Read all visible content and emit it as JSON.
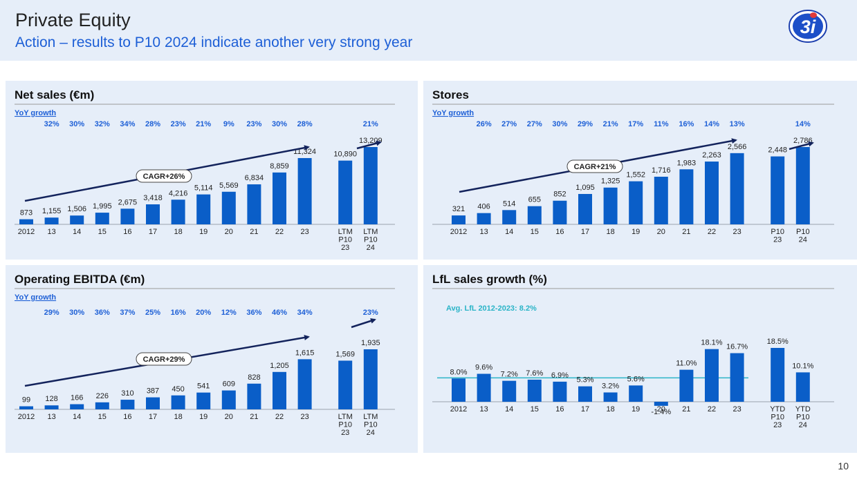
{
  "header": {
    "title": "Private Equity",
    "subtitle": "Action – results to P10 2024 indicate another very strong year"
  },
  "page_number": "10",
  "logo": {
    "icon": "3i-logo-icon",
    "text": "3i"
  },
  "colors": {
    "bar": "#0a5ec8",
    "growth": "#1d5fd6",
    "arrow": "#13235c",
    "avg_line": "#2ab4c7",
    "panel_bg": "#e6eef9"
  },
  "chart_data": [
    {
      "id": "net-sales",
      "type": "bar",
      "title": "Net sales (€m)",
      "growth_label": "YoY growth",
      "categories": [
        "2012",
        "13",
        "14",
        "15",
        "16",
        "17",
        "18",
        "19",
        "20",
        "21",
        "22",
        "23",
        "LTM P10 23",
        "LTM P10 24"
      ],
      "values": [
        873,
        1155,
        1506,
        1995,
        2675,
        3418,
        4216,
        5114,
        5569,
        6834,
        8859,
        11324,
        10890,
        13209
      ],
      "value_labels": [
        "873",
        "1,155",
        "1,506",
        "1,995",
        "2,675",
        "3,418",
        "4,216",
        "5,114",
        "5,569",
        "6,834",
        "8,859",
        "11,324",
        "10,890",
        "13,209"
      ],
      "growth": [
        "",
        "32%",
        "30%",
        "32%",
        "34%",
        "28%",
        "23%",
        "21%",
        "9%",
        "23%",
        "30%",
        "28%",
        "",
        "21%"
      ],
      "cagr_label": "CAGR+26%",
      "ylim": [
        0,
        13209
      ]
    },
    {
      "id": "stores",
      "type": "bar",
      "title": "Stores",
      "growth_label": "YoY growth",
      "categories": [
        "2012",
        "13",
        "14",
        "15",
        "16",
        "17",
        "18",
        "19",
        "20",
        "21",
        "22",
        "23",
        "P10 23",
        "P10 24"
      ],
      "values": [
        321,
        406,
        514,
        655,
        852,
        1095,
        1325,
        1552,
        1716,
        1983,
        2263,
        2566,
        2448,
        2786
      ],
      "value_labels": [
        "321",
        "406",
        "514",
        "655",
        "852",
        "1,095",
        "1,325",
        "1,552",
        "1,716",
        "1,983",
        "2,263",
        "2,566",
        "2,448",
        "2,786"
      ],
      "growth": [
        "",
        "26%",
        "27%",
        "27%",
        "30%",
        "29%",
        "21%",
        "17%",
        "11%",
        "16%",
        "14%",
        "13%",
        "",
        "14%"
      ],
      "cagr_label": "CAGR+21%",
      "ylim": [
        0,
        2786
      ]
    },
    {
      "id": "ebitda",
      "type": "bar",
      "title": "Operating EBITDA (€m)",
      "growth_label": "YoY growth",
      "categories": [
        "2012",
        "13",
        "14",
        "15",
        "16",
        "17",
        "18",
        "19",
        "20",
        "21",
        "22",
        "23",
        "LTM P10 23",
        "LTM P10 24"
      ],
      "values": [
        99,
        128,
        166,
        226,
        310,
        387,
        450,
        541,
        609,
        828,
        1205,
        1615,
        1569,
        1935
      ],
      "value_labels": [
        "99",
        "128",
        "166",
        "226",
        "310",
        "387",
        "450",
        "541",
        "609",
        "828",
        "1,205",
        "1,615",
        "1,569",
        "1,935"
      ],
      "growth": [
        "",
        "29%",
        "30%",
        "36%",
        "37%",
        "25%",
        "16%",
        "20%",
        "12%",
        "36%",
        "46%",
        "34%",
        "",
        "23%"
      ],
      "cagr_label": "CAGR+29%",
      "ylim": [
        0,
        1935
      ]
    },
    {
      "id": "lfl",
      "type": "bar",
      "title": "LfL sales growth (%)",
      "avg_label": "Avg. LfL 2012-2023: 8.2%",
      "avg_value": 8.2,
      "categories": [
        "2012",
        "13",
        "14",
        "15",
        "16",
        "17",
        "18",
        "19",
        "20",
        "21",
        "22",
        "23",
        "YTD P10 23",
        "YTD P10 24"
      ],
      "values": [
        8.0,
        9.6,
        7.2,
        7.6,
        6.9,
        5.3,
        3.2,
        5.6,
        -1.4,
        11.0,
        18.1,
        16.7,
        18.5,
        10.1
      ],
      "value_labels": [
        "8.0%",
        "9.6%",
        "7.2%",
        "7.6%",
        "6.9%",
        "5.3%",
        "3.2%",
        "5.6%",
        "-1.4%",
        "11.0%",
        "18.1%",
        "16.7%",
        "18.5%",
        "10.1%"
      ],
      "ylim": [
        -1.4,
        18.5
      ]
    }
  ]
}
